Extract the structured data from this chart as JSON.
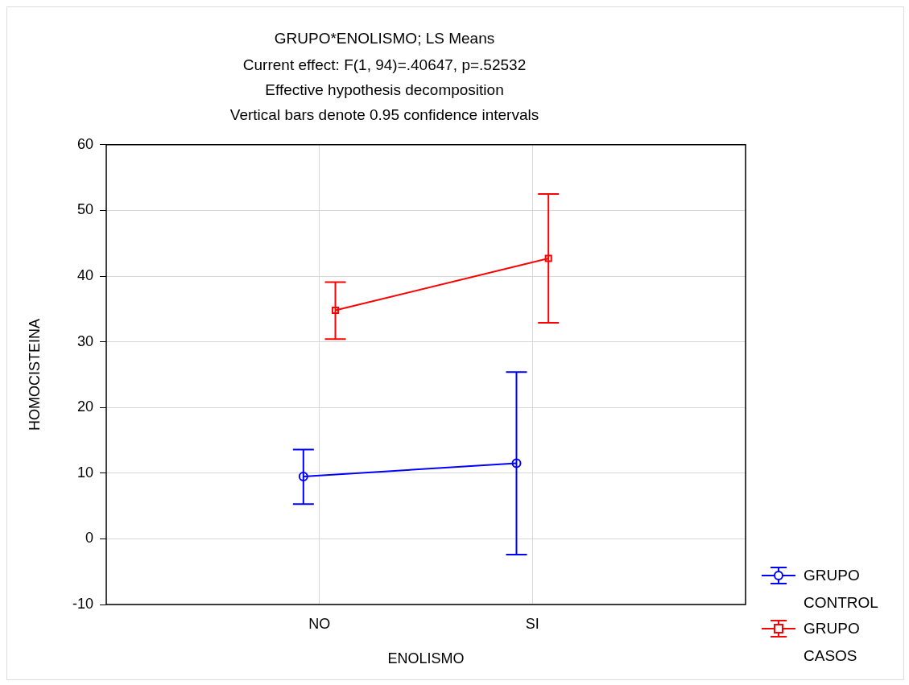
{
  "chart_data": {
    "type": "line",
    "title": "GRUPO*ENOLISMO; LS Means",
    "subtitle": "Current effect: F(1, 94)=.40647, p=.52532",
    "annotations": [
      "Effective hypothesis decomposition",
      "Vertical bars denote 0.95 confidence intervals"
    ],
    "xlabel": "ENOLISMO",
    "ylabel": "HOMOCISTEINA",
    "categories": [
      "NO",
      "SI"
    ],
    "series": [
      {
        "name": "GRUPO CONTROL",
        "color": "#0000ff",
        "marker": "circle",
        "values": [
          9.5,
          11.5
        ],
        "errors": [
          [
            5.3,
            13.6
          ],
          [
            -2.4,
            25.4
          ]
        ]
      },
      {
        "name": "GRUPO CASOS",
        "color": "#ff0000",
        "marker": "square",
        "values": [
          34.8,
          42.7
        ],
        "errors": [
          [
            30.4,
            39.1
          ],
          [
            32.9,
            52.5
          ]
        ]
      }
    ],
    "ylim": [
      -10,
      60
    ],
    "yticks": [
      -10,
      0,
      10,
      20,
      30,
      40,
      50,
      60
    ],
    "grid": true,
    "legend": "bottom right"
  }
}
